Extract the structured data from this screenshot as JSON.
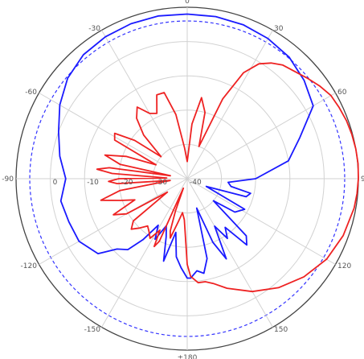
{
  "chart_data": {
    "type": "polar-line",
    "title": "",
    "angle_ticks": [
      "0",
      "30",
      "60",
      "90",
      "120",
      "150",
      "±180",
      "-150",
      "-120",
      "-90",
      "-60",
      "-30"
    ],
    "angle_tick_values": [
      0,
      30,
      60,
      90,
      120,
      150,
      180,
      -150,
      -120,
      -90,
      -60,
      -30
    ],
    "radial_ticks": [
      "-40",
      "-30",
      "-20",
      "-10",
      "0"
    ],
    "radial_tick_values": [
      -40,
      -30,
      -20,
      -10,
      0
    ],
    "r_range": [
      -40,
      10
    ],
    "angle_direction": "clockwise",
    "zero_angle": "top",
    "reference_circle": {
      "value": 6,
      "color": "#3333ff",
      "style": "dashed"
    },
    "series": [
      {
        "color": "#1a1aff",
        "angles": [
          0,
          10,
          20,
          30,
          40,
          50,
          60,
          70,
          80,
          90,
          95,
          100,
          103,
          107,
          112,
          118,
          125,
          130,
          134,
          138,
          142,
          146,
          150,
          154,
          158,
          162,
          166,
          170,
          174,
          178,
          180,
          184,
          188,
          192,
          196,
          200,
          204,
          208,
          212,
          216,
          220,
          225,
          230,
          240,
          250,
          260,
          270,
          280,
          290,
          300,
          310,
          320,
          330,
          340,
          350,
          360
        ],
        "values": [
          8,
          8,
          7.8,
          7.2,
          6.3,
          4.6,
          2.5,
          -5,
          -10,
          -20,
          -28,
          -27,
          -21,
          -22,
          -34,
          -21,
          -23,
          -30,
          -16,
          -14,
          -22,
          -19,
          -24,
          -14,
          -20,
          -31,
          -16,
          -12,
          -13,
          -11,
          -11,
          -14,
          -17,
          -24,
          -15,
          -22,
          -25,
          -20,
          -24,
          -18,
          -13,
          -11,
          -6,
          -3.5,
          -3.2,
          -2.5,
          -4.5,
          -2.2,
          0,
          3,
          5.6,
          7.2,
          7.8,
          8.1,
          8.2,
          8
        ]
      },
      {
        "color": "#ee2222",
        "angles": [
          0,
          5,
          10,
          15,
          20,
          24,
          28,
          32,
          36,
          40,
          45,
          50,
          55,
          60,
          65,
          70,
          75,
          80,
          85,
          90,
          95,
          100,
          110,
          120,
          130,
          140,
          150,
          160,
          166,
          170,
          174,
          178,
          180,
          184,
          188,
          192,
          196,
          198,
          200,
          202,
          204,
          206,
          208,
          212,
          216,
          220,
          224,
          228,
          232,
          236,
          240,
          244,
          248,
          252,
          256,
          260,
          264,
          266,
          268,
          270,
          272,
          274,
          276,
          278,
          280,
          282,
          286,
          290,
          294,
          298,
          302,
          306,
          310,
          315,
          320,
          325,
          330,
          335,
          340,
          345,
          350,
          355,
          360
        ],
        "values": [
          -35,
          -24,
          -16,
          -20,
          -30,
          -14.5,
          -5,
          -0.5,
          1.7,
          3.3,
          4.3,
          5.7,
          7.2,
          8.5,
          9,
          9.5,
          9.8,
          10,
          10.1,
          10,
          9.8,
          9.5,
          8.5,
          7,
          4.5,
          1.5,
          -2,
          -6,
          -8.5,
          -9.5,
          -9.5,
          -11.5,
          -15,
          -28,
          -30,
          -27,
          -22,
          -24,
          -30,
          -37,
          -20,
          -18,
          -23,
          -19.5,
          -21,
          -22,
          -20,
          -18,
          -20,
          -33,
          -19.5,
          -16,
          -23.5,
          -19.5,
          -14,
          -20,
          -35,
          -19.5,
          -17,
          -20,
          -34,
          -18,
          -13.5,
          -17,
          -35,
          -20,
          -15,
          -21,
          -30,
          -16,
          -15,
          -21,
          -30,
          -22,
          -17,
          -14.5,
          -18,
          -19,
          -14,
          -14,
          -21,
          -31,
          -35
        ]
      }
    ]
  }
}
